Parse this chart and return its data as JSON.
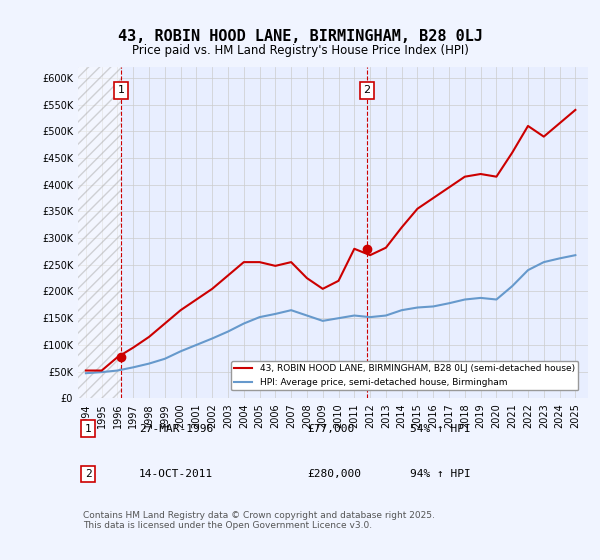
{
  "title": "43, ROBIN HOOD LANE, BIRMINGHAM, B28 0LJ",
  "subtitle": "Price paid vs. HM Land Registry's House Price Index (HPI)",
  "background_color": "#f0f4ff",
  "plot_bg_color": "#e8eeff",
  "grid_color": "#cccccc",
  "ylim": [
    0,
    620000
  ],
  "yticks": [
    0,
    50000,
    100000,
    150000,
    200000,
    250000,
    300000,
    350000,
    400000,
    450000,
    500000,
    550000,
    600000
  ],
  "xlim_start": 1993.5,
  "xlim_end": 2025.8,
  "xticks": [
    1994,
    1995,
    1996,
    1997,
    1998,
    1999,
    2000,
    2001,
    2002,
    2003,
    2004,
    2005,
    2006,
    2007,
    2008,
    2009,
    2010,
    2011,
    2012,
    2013,
    2014,
    2015,
    2016,
    2017,
    2018,
    2019,
    2020,
    2021,
    2022,
    2023,
    2024,
    2025
  ],
  "hpi_color": "#6699cc",
  "price_color": "#cc0000",
  "purchase_marker_color": "#cc0000",
  "annotation_box_color": "#cc0000",
  "dashed_line_color": "#cc0000",
  "legend_price_label": "43, ROBIN HOOD LANE, BIRMINGHAM, B28 0LJ (semi-detached house)",
  "legend_hpi_label": "HPI: Average price, semi-detached house, Birmingham",
  "purchase1_x": 1996.24,
  "purchase1_y": 77000,
  "purchase1_label": "1",
  "purchase2_x": 2011.79,
  "purchase2_y": 280000,
  "purchase2_label": "2",
  "footer_text": "Contains HM Land Registry data © Crown copyright and database right 2025.\nThis data is licensed under the Open Government Licence v3.0.",
  "table_row1": [
    "1",
    "27-MAR-1996",
    "£77,000",
    "54% ↑ HPI"
  ],
  "table_row2": [
    "2",
    "14-OCT-2011",
    "£280,000",
    "94% ↑ HPI"
  ],
  "hpi_x": [
    1994,
    1995,
    1996,
    1997,
    1998,
    1999,
    2000,
    2001,
    2002,
    2003,
    2004,
    2005,
    2006,
    2007,
    2008,
    2009,
    2010,
    2011,
    2012,
    2013,
    2014,
    2015,
    2016,
    2017,
    2018,
    2019,
    2020,
    2021,
    2022,
    2023,
    2024,
    2025
  ],
  "hpi_y": [
    47000,
    49000,
    52000,
    58000,
    65000,
    74000,
    88000,
    100000,
    112000,
    125000,
    140000,
    152000,
    158000,
    165000,
    155000,
    145000,
    150000,
    155000,
    152000,
    155000,
    165000,
    170000,
    172000,
    178000,
    185000,
    188000,
    185000,
    210000,
    240000,
    255000,
    262000,
    268000
  ],
  "price_x": [
    1994,
    1995,
    1996,
    1997,
    1998,
    1999,
    2000,
    2001,
    2002,
    2003,
    2004,
    2005,
    2006,
    2007,
    2008,
    2009,
    2010,
    2011,
    2012,
    2013,
    2014,
    2015,
    2016,
    2017,
    2018,
    2019,
    2020,
    2021,
    2022,
    2023,
    2024,
    2025
  ],
  "price_y": [
    52000,
    52000,
    77000,
    95000,
    115000,
    140000,
    165000,
    185000,
    205000,
    230000,
    255000,
    255000,
    248000,
    255000,
    225000,
    205000,
    220000,
    280000,
    268000,
    282000,
    320000,
    355000,
    375000,
    395000,
    415000,
    420000,
    415000,
    460000,
    510000,
    490000,
    515000,
    540000
  ]
}
